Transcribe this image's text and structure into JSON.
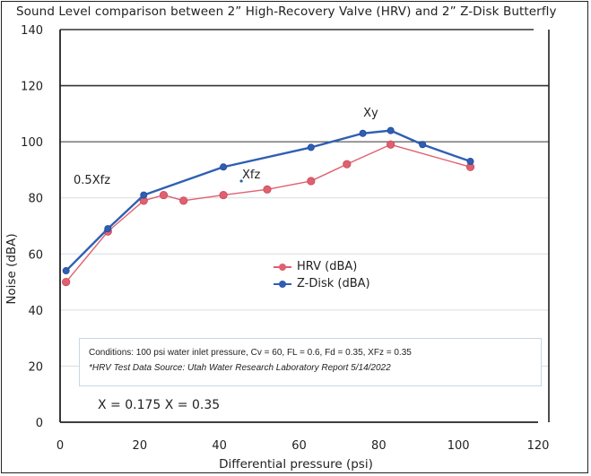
{
  "chart_data": {
    "type": "line",
    "title": "Sound Level comparison between 2” High-Recovery Valve (HRV) and 2” Z-Disk Butterfly",
    "xlabel": "Differential pressure (psi)",
    "ylabel": "Noise (dBA)",
    "xlim": [
      0,
      120
    ],
    "ylim": [
      0,
      140
    ],
    "xticks": [
      "0",
      "20",
      "40",
      "60",
      "80",
      "100",
      "120"
    ],
    "yticks": [
      "0",
      "20",
      "40",
      "60",
      "80",
      "100",
      "120",
      "140"
    ],
    "xtick_values": [
      0,
      20,
      40,
      60,
      80,
      100,
      120
    ],
    "ytick_values": [
      0,
      20,
      40,
      60,
      80,
      100,
      120,
      140
    ],
    "grid": true,
    "legend_position": "center-right",
    "series": [
      {
        "name": "HRV (dBA)",
        "color": "#e06070",
        "x": [
          1.5,
          12,
          21,
          26,
          31,
          41,
          52,
          63,
          72,
          83,
          103
        ],
        "y": [
          50,
          68,
          79,
          81,
          79,
          81,
          83,
          86,
          92,
          99,
          91
        ]
      },
      {
        "name": "Z-Disk (dBA)",
        "color": "#2f5fb3",
        "x": [
          1.5,
          12,
          21,
          41,
          63,
          76,
          83,
          91,
          103
        ],
        "y": [
          54,
          69,
          81,
          91,
          98,
          103,
          104,
          99,
          93
        ]
      }
    ],
    "annotations": [
      {
        "text": "0.5Xfz",
        "x": 8,
        "y": 85
      },
      {
        "text": "Xfz",
        "x": 48,
        "y": 87
      },
      {
        "text": "Xy",
        "x": 78,
        "y": 109
      }
    ],
    "conditions": {
      "line1": "Conditions: 100 psi water inlet pressure, Cv = 60, FL = 0.6, Fd = 0.35, XFz = 0.35",
      "line2": "*HRV Test Data Source: Utah Water Research Laboratory Report 5/14/2022"
    },
    "x_note": "X = 0.175 X = 0.35"
  }
}
